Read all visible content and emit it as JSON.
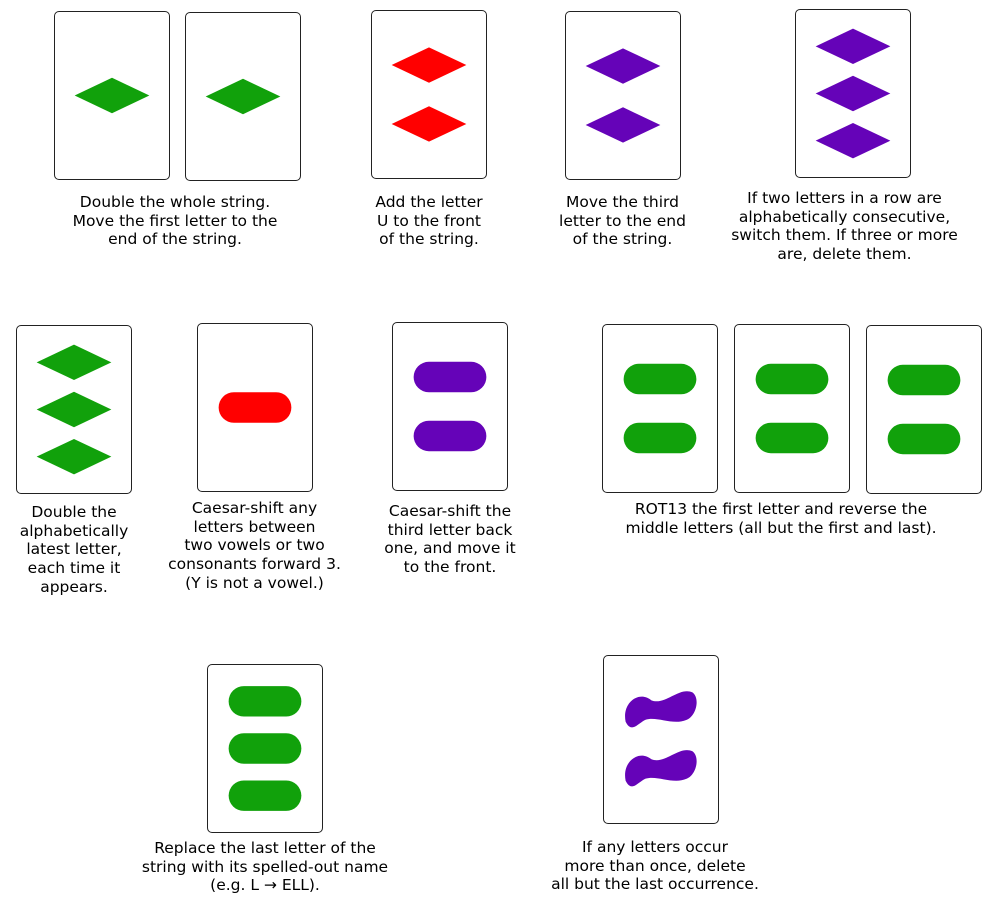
{
  "colors": {
    "green": "#11a10b",
    "red": "#ff0000",
    "purple": "#6503b8",
    "border": "#222222"
  },
  "rules": [
    {
      "caption": "Double the whole string.\nMove the first letter to the\nend of the string.",
      "cards": [
        {
          "shape": "diamond",
          "color": "green",
          "count": 1
        },
        {
          "shape": "diamond",
          "color": "green",
          "count": 1
        }
      ]
    },
    {
      "caption": "Add the letter\nU to the front\nof the string.",
      "cards": [
        {
          "shape": "diamond",
          "color": "red",
          "count": 2
        }
      ]
    },
    {
      "caption": "Move the third\nletter to the end\nof the string.",
      "cards": [
        {
          "shape": "diamond",
          "color": "purple",
          "count": 2
        }
      ]
    },
    {
      "caption": "If two letters in a row are\nalphabetically consecutive,\nswitch them. If three or more\nare, delete them.",
      "cards": [
        {
          "shape": "diamond",
          "color": "purple",
          "count": 3
        }
      ]
    },
    {
      "caption": "Double the\nalphabetically\nlatest letter,\neach time it\nappears.",
      "cards": [
        {
          "shape": "diamond",
          "color": "green",
          "count": 3
        }
      ]
    },
    {
      "caption": "Caesar-shift any\nletters between\ntwo vowels or two\nconsonants forward 3.\n(Y is not a vowel.)",
      "cards": [
        {
          "shape": "oval",
          "color": "red",
          "count": 1
        }
      ]
    },
    {
      "caption": "Caesar-shift the\nthird letter back\none, and move it\nto the front.",
      "cards": [
        {
          "shape": "oval",
          "color": "purple",
          "count": 2
        }
      ]
    },
    {
      "caption": "ROT13 the first letter and reverse the\nmiddle letters (all but the first and last).",
      "cards": [
        {
          "shape": "oval",
          "color": "green",
          "count": 2
        },
        {
          "shape": "oval",
          "color": "green",
          "count": 2
        },
        {
          "shape": "oval",
          "color": "green",
          "count": 2
        }
      ]
    },
    {
      "caption": "Replace the last letter of the\nstring with its spelled-out name\n(e.g. L → ELL).",
      "cards": [
        {
          "shape": "oval",
          "color": "green",
          "count": 3
        }
      ]
    },
    {
      "caption": "If any letters occur\nmore than once, delete\nall but the last occurrence.",
      "cards": [
        {
          "shape": "squiggle",
          "color": "purple",
          "count": 2
        }
      ]
    }
  ]
}
